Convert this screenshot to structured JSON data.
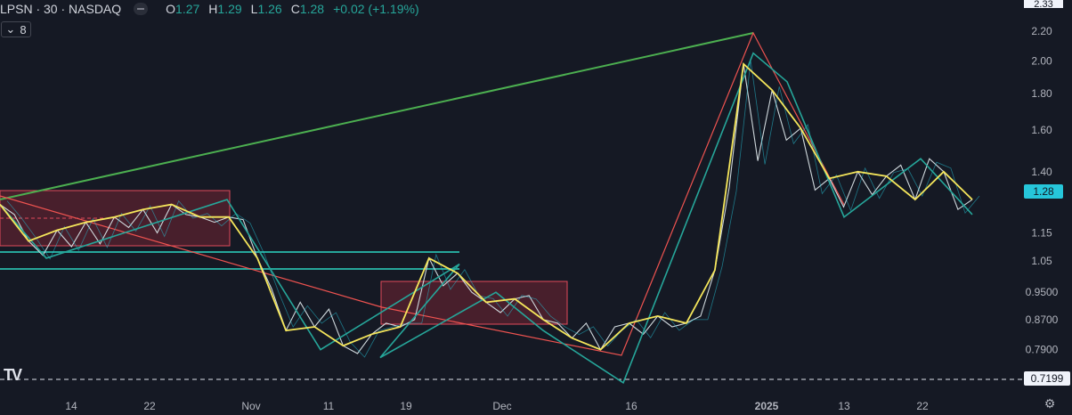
{
  "header": {
    "symbol": "LPSN · 30 · NASDAQ",
    "o_label": "O",
    "o_value": "1.27",
    "h_label": "H",
    "h_value": "1.29",
    "l_label": "L",
    "l_value": "1.26",
    "c_label": "C",
    "c_value": "1.28",
    "change": "+0.02 (+1.19%)"
  },
  "indicator_toggle": {
    "icon": "chevron-down-icon",
    "count": "8"
  },
  "price_labels": {
    "current": "1.28",
    "top": "2.33",
    "bottom": "0.7199"
  },
  "logo": "TV",
  "colors": {
    "background": "#151924",
    "up": "#26a69a",
    "price_line": "#cfd8dc",
    "zigzag_yellow": "#f5e65b",
    "zigzag_teal": "#26a69a",
    "green_line": "#4caf50",
    "red_line": "#ef5350",
    "box_fill": "rgba(136,40,56,0.45)",
    "box_border": "#e04a5a",
    "current_price": "#26c6da"
  },
  "chart_data": {
    "type": "line",
    "y_scale": "log",
    "ylim": [
      0.7199,
      2.33
    ],
    "y_ticks": [
      "2.20",
      "2.00",
      "1.80",
      "1.60",
      "1.40",
      "1.15",
      "1.05",
      "0.9500",
      "0.8700",
      "0.7900"
    ],
    "x_ticks": [
      "14",
      "22",
      "Nov",
      "11",
      "19",
      "Dec",
      "16",
      "2025",
      "13",
      "22"
    ],
    "series": [
      {
        "values": [
          1.26,
          1.22,
          1.12,
          1.07,
          1.16,
          1.1,
          1.19,
          1.11,
          1.21,
          1.17,
          1.24,
          1.15,
          1.26,
          1.22,
          1.21,
          1.19,
          1.21,
          1.2,
          1.06,
          0.96,
          0.84,
          0.92,
          0.85,
          0.9,
          0.8,
          0.78,
          0.83,
          0.86,
          0.85,
          0.87,
          1.06,
          0.97,
          1.01,
          0.95,
          0.92,
          0.89,
          0.93,
          0.94,
          0.87,
          0.86,
          0.82,
          0.86,
          0.79,
          0.85,
          0.86,
          0.83,
          0.88,
          0.85,
          0.86,
          0.88,
          1.02,
          1.33,
          1.98,
          1.45,
          1.82,
          1.55,
          1.61,
          1.32,
          1.37,
          1.25,
          1.4,
          1.3,
          1.38,
          1.43,
          1.28,
          1.46,
          1.4,
          1.24,
          1.28
        ]
      }
    ],
    "zigzag_levels": [
      1.26,
      1.06,
      1.28,
      0.79,
      1.04,
      0.77,
      0.95,
      0.84,
      0.71,
      2.05,
      1.87,
      1.21,
      1.46,
      1.22
    ]
  }
}
